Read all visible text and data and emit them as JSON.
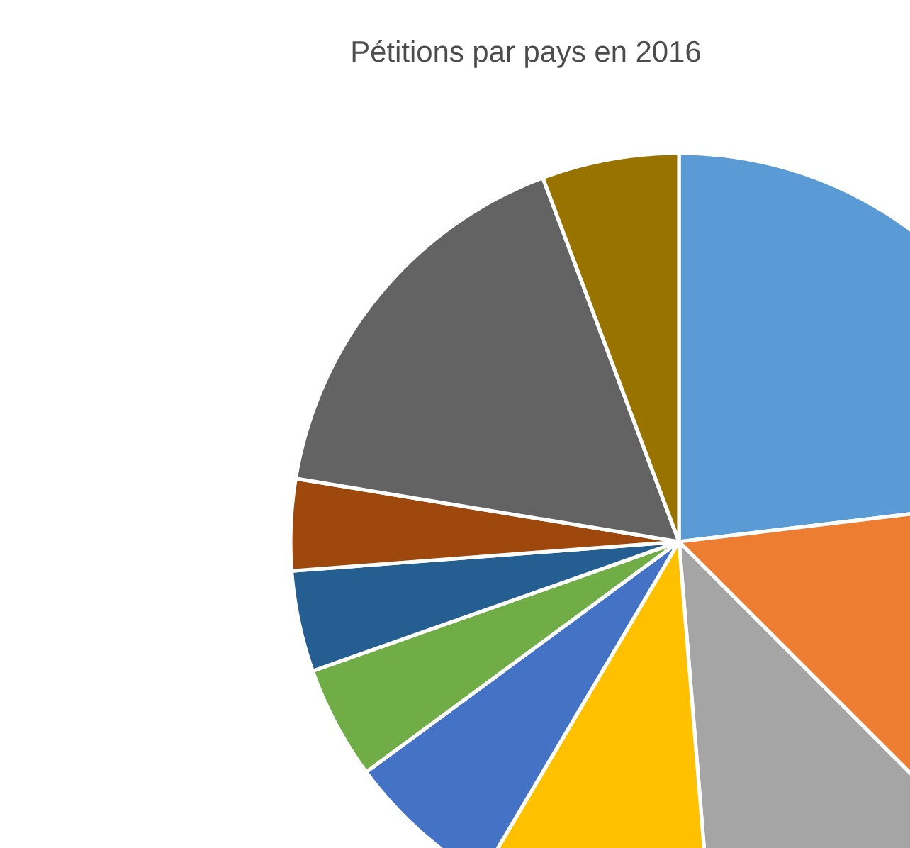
{
  "chart_data": {
    "type": "pie",
    "title": "Pétitions par pays en 2016",
    "categories": [
      null,
      null,
      null,
      null,
      null,
      null,
      null,
      null,
      null,
      null
    ],
    "values": [
      23.1,
      14.4,
      11.2,
      9.8,
      6.4,
      4.7,
      4.2,
      3.8,
      16.7,
      5.7
    ],
    "colors": [
      "#5b9bd5",
      "#ed7d31",
      "#a5a5a5",
      "#ffc000",
      "#4472c4",
      "#70ad47",
      "#255e91",
      "#9e480e",
      "#636363",
      "#997300"
    ]
  }
}
